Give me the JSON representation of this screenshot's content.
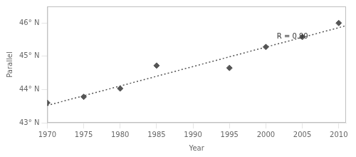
{
  "chart_data": {
    "type": "scatter",
    "xlabel": "Year",
    "ylabel": "Parallel",
    "series": [
      {
        "type": "scatter",
        "x": [
          1970,
          1975,
          1980,
          1985,
          1995,
          2000,
          2005,
          2010
        ],
        "values": [
          43.6,
          43.78,
          44.03,
          44.72,
          44.65,
          45.28,
          45.58,
          46.0
        ],
        "color": "#555555",
        "marker": "diamond"
      },
      {
        "type": "line",
        "x": [
          1970,
          2011
        ],
        "values": [
          43.52,
          45.92
        ],
        "color": "#555555",
        "line_style": "dotted"
      }
    ],
    "xlim": [
      1970,
      2011
    ],
    "ylim": [
      43.0,
      46.5
    ],
    "xticks": [
      1970,
      1975,
      1980,
      1985,
      1990,
      1995,
      2000,
      2005,
      2010
    ],
    "yticks": [
      {
        "value": 43,
        "label": "43° N"
      },
      {
        "value": 44,
        "label": "44° N"
      },
      {
        "value": 45,
        "label": "45° N"
      },
      {
        "value": 46,
        "label": "46° N"
      }
    ],
    "annotations": [
      {
        "text": "R = 0.90",
        "x": 2001.5,
        "y": 45.58
      }
    ],
    "grid": false
  }
}
